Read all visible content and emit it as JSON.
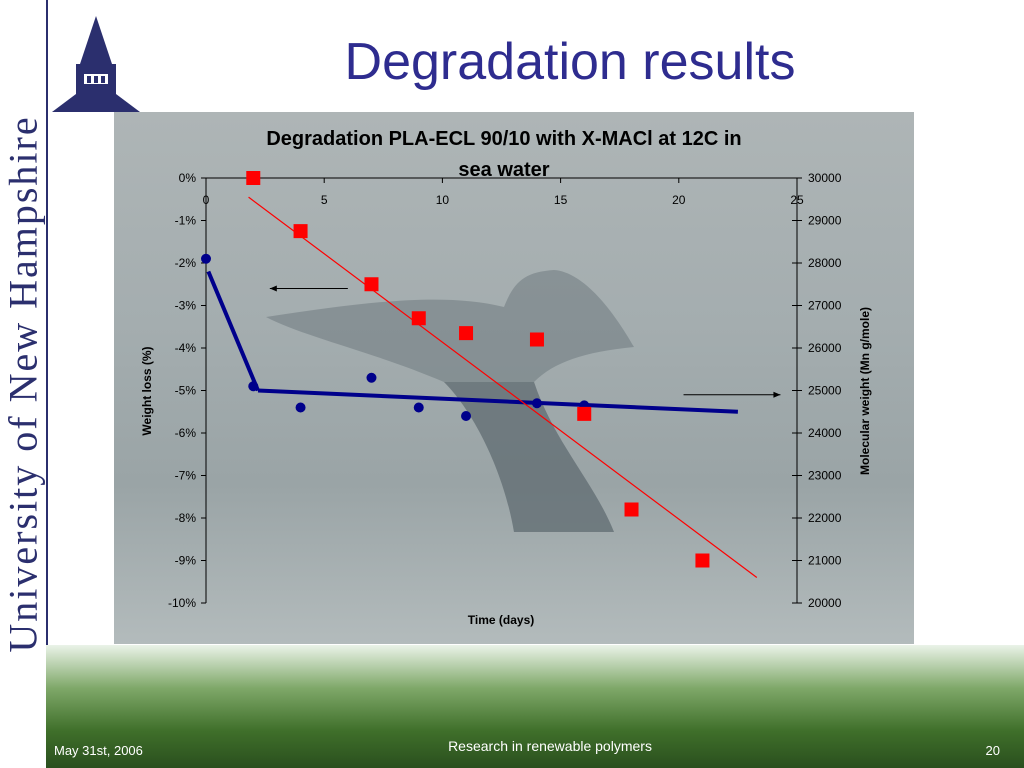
{
  "slide": {
    "title": "Degradation results",
    "side_text": "University of New Hampshire",
    "footer_date": "May 31st, 2006",
    "footer_center": "Research in renewable polymers",
    "footer_page": "20"
  },
  "chart_data": {
    "type": "scatter",
    "title": "Degradation PLA-ECL 90/10 with X-MACl at 12C in sea water",
    "xlabel": "Time (days)",
    "ylabel_left": "Weight loss (%)",
    "ylabel_right": "Molecular weight (Mn g/mole)",
    "xlim": [
      0,
      25
    ],
    "xticks": [
      "0",
      "5",
      "10",
      "15",
      "20",
      "25"
    ],
    "ylim_left": [
      -10,
      0
    ],
    "yticks_left": [
      "0%",
      "-1%",
      "-2%",
      "-3%",
      "-4%",
      "-5%",
      "-6%",
      "-7%",
      "-8%",
      "-9%",
      "-10%"
    ],
    "ylim_right": [
      20000,
      30000
    ],
    "yticks_right": [
      "30000",
      "29000",
      "28000",
      "27000",
      "26000",
      "25000",
      "24000",
      "23000",
      "22000",
      "21000",
      "20000"
    ],
    "series": [
      {
        "axis": "left",
        "marker": "circle",
        "color": "#00008b",
        "x": [
          0,
          2,
          4,
          7,
          9,
          11,
          14,
          16
        ],
        "y": [
          -1.9,
          -4.9,
          -5.4,
          -4.7,
          -5.4,
          -5.6,
          -5.3,
          -5.35
        ]
      },
      {
        "axis": "right",
        "marker": "square",
        "color": "#ff0000",
        "x": [
          2,
          4,
          7,
          9,
          11,
          14,
          16,
          18,
          21
        ],
        "y": [
          30000,
          28750,
          27500,
          26700,
          26350,
          26200,
          24450,
          22200,
          21000
        ]
      }
    ],
    "trendlines": [
      {
        "axis": "left",
        "color": "#00008b",
        "x": [
          0.1,
          2.2
        ],
        "y": [
          -2.2,
          -5.0
        ]
      },
      {
        "axis": "left",
        "color": "#00008b",
        "x": [
          2.2,
          22.5
        ],
        "y": [
          -5.0,
          -5.5
        ]
      },
      {
        "axis": "right",
        "color": "#ff0000",
        "x": [
          1.8,
          23.3
        ],
        "y": [
          29550,
          20600
        ]
      }
    ],
    "arrows": [
      {
        "direction": "left",
        "x": [
          6,
          2.7
        ],
        "y_left": [
          -2.6,
          -2.6
        ]
      },
      {
        "direction": "right",
        "x": [
          20.2,
          24.3
        ],
        "y_left": [
          -5.1,
          -5.1
        ]
      }
    ],
    "grid": false
  }
}
